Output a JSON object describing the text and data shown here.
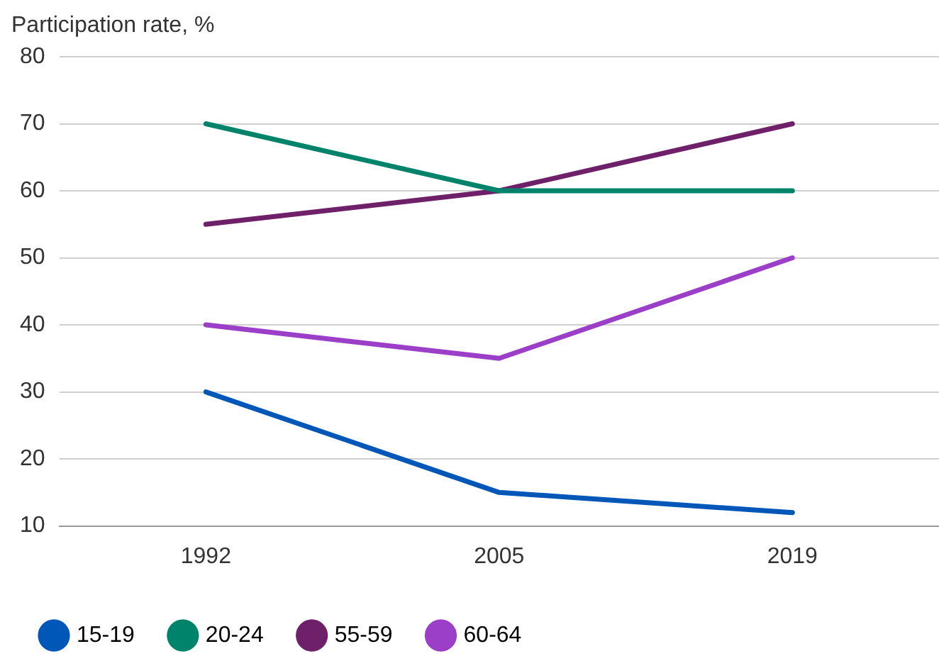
{
  "chart_data": {
    "type": "line",
    "ylabel": "Participation rate, %",
    "categories": [
      "1992",
      "2005",
      "2019"
    ],
    "series": [
      {
        "name": "15-19",
        "color": "#0057b8",
        "values": [
          30,
          15,
          12
        ]
      },
      {
        "name": "20-24",
        "color": "#00836b",
        "values": [
          70,
          60,
          60
        ]
      },
      {
        "name": "55-59",
        "color": "#6e2169",
        "values": [
          55,
          60,
          70
        ]
      },
      {
        "name": "60-64",
        "color": "#9b3fc8",
        "values": [
          40,
          35,
          50
        ]
      }
    ],
    "ylim": [
      10,
      80
    ],
    "yticks": [
      10,
      20,
      30,
      40,
      50,
      60,
      70,
      80
    ],
    "grid": "y",
    "legend": "bottom",
    "marker": "none",
    "line_style": "solid"
  }
}
